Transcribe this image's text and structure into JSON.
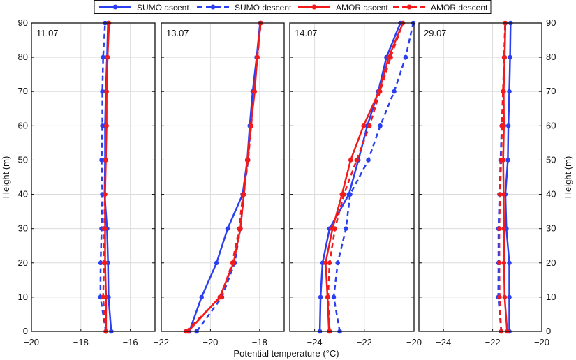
{
  "chart_data": {
    "type": "line",
    "xlabel": "Potential temperature (°C)",
    "ylabel": "Height (m)",
    "legend": {
      "placement": "top",
      "entries": [
        {
          "name": "SUMO ascent",
          "color": "#2b3ff2",
          "dash": false
        },
        {
          "name": "SUMO descent",
          "color": "#2b3ff2",
          "dash": true
        },
        {
          "name": "AMOR ascent",
          "color": "#f21a1a",
          "dash": false
        },
        {
          "name": "AMOR descent",
          "color": "#f21a1a",
          "dash": true
        }
      ]
    },
    "grid": true,
    "ylim": [
      0,
      90
    ],
    "yticks": [
      0,
      10,
      20,
      30,
      40,
      50,
      60,
      70,
      80,
      90
    ],
    "heights": [
      0,
      10,
      20,
      30,
      40,
      50,
      60,
      70,
      80,
      90
    ],
    "panels": [
      {
        "label": "11.07",
        "xlim": [
          -20,
          -15
        ],
        "xticks": [
          -20,
          -18,
          -16
        ],
        "xtick_labels": [
          "−20",
          "−18",
          "−16"
        ],
        "series": [
          {
            "name": "SUMO ascent",
            "values": [
              -16.77,
              -16.88,
              -16.9,
              -16.94,
              -17.04,
              -17.02,
              -17.02,
              -16.99,
              -16.94,
              -16.9
            ]
          },
          {
            "name": "SUMO descent",
            "values": [
              -16.99,
              -17.21,
              -17.2,
              -17.16,
              -17.13,
              -17.16,
              -17.13,
              -17.13,
              -17.1,
              -17.02
            ]
          },
          {
            "name": "AMOR ascent",
            "values": [
              -16.98,
              -16.98,
              -17.02,
              -17.02,
              -17.02,
              -16.99,
              -16.96,
              -16.96,
              -16.92,
              -16.86
            ]
          },
          {
            "name": "AMOR descent",
            "values": [
              -16.99,
              -17.1,
              -17.06,
              -17.05,
              -17.03,
              -17.0,
              -16.97,
              -16.96,
              -16.92,
              -16.87
            ]
          }
        ]
      },
      {
        "label": "13.07",
        "xlim": [
          -22,
          -17
        ],
        "xticks": [
          -22,
          -20,
          -18
        ],
        "xtick_labels": [
          "−22",
          "−20",
          "−18"
        ],
        "series": [
          {
            "name": "SUMO ascent",
            "values": [
              -20.86,
              -20.36,
              -19.75,
              -19.3,
              -18.69,
              -18.5,
              -18.4,
              -18.28,
              -18.12,
              -17.98
            ]
          },
          {
            "name": "SUMO descent",
            "values": [
              -20.56,
              -19.53,
              -19.01,
              -18.78,
              -18.64,
              -18.47,
              -18.36,
              -18.22,
              -18.09,
              -17.96
            ]
          },
          {
            "name": "AMOR ascent",
            "values": [
              -20.91,
              -19.62,
              -19.06,
              -18.78,
              -18.64,
              -18.5,
              -18.36,
              -18.2,
              -18.1,
              -17.96
            ]
          },
          {
            "name": "AMOR descent",
            "values": [
              -21.0,
              -19.58,
              -19.11,
              -18.83,
              -18.68,
              -18.47,
              -18.34,
              -18.22,
              -18.09,
              -17.95
            ]
          }
        ]
      },
      {
        "label": "14.07",
        "xlim": [
          -25,
          -20
        ],
        "xticks": [
          -24,
          -22,
          -20
        ],
        "xtick_labels": [
          "−24",
          "−22",
          "−20"
        ],
        "series": [
          {
            "name": "SUMO ascent",
            "values": [
              -23.79,
              -23.76,
              -23.68,
              -23.4,
              -22.62,
              -22.24,
              -21.88,
              -21.44,
              -21.11,
              -20.55
            ]
          },
          {
            "name": "SUMO descent",
            "values": [
              -22.99,
              -23.23,
              -23.07,
              -22.74,
              -22.57,
              -21.84,
              -21.36,
              -20.8,
              -20.34,
              -20.03
            ]
          },
          {
            "name": "AMOR ascent",
            "values": [
              -23.42,
              -23.48,
              -23.56,
              -23.28,
              -22.9,
              -22.55,
              -22.03,
              -21.41,
              -21.02,
              -20.45
            ]
          },
          {
            "name": "AMOR descent",
            "values": [
              -23.39,
              -23.46,
              -23.4,
              -23.18,
              -22.82,
              -22.31,
              -21.79,
              -21.37,
              -20.94,
              -20.45
            ]
          }
        ]
      },
      {
        "label": "29.07",
        "xlim": [
          -25,
          -20
        ],
        "xticks": [
          -24,
          -22,
          -20
        ],
        "xtick_labels": [
          "−24",
          "−22",
          "−20"
        ],
        "series": [
          {
            "name": "SUMO ascent",
            "values": [
              -21.32,
              -21.32,
              -21.32,
              -21.44,
              -21.48,
              -21.38,
              -21.36,
              -21.32,
              -21.29,
              -21.27
            ]
          },
          {
            "name": "SUMO descent",
            "values": [
              -21.65,
              -21.77,
              -21.76,
              -21.76,
              -21.72,
              -21.68,
              -21.63,
              -21.57,
              -21.53,
              -21.49
            ]
          },
          {
            "name": "AMOR ascent",
            "values": [
              -21.41,
              -21.51,
              -21.54,
              -21.54,
              -21.55,
              -21.57,
              -21.54,
              -21.55,
              -21.51,
              -21.48
            ]
          },
          {
            "name": "AMOR descent",
            "values": [
              -21.65,
              -21.72,
              -21.73,
              -21.73,
              -21.7,
              -21.65,
              -21.62,
              -21.58,
              -21.53,
              -21.49
            ]
          }
        ]
      }
    ]
  }
}
